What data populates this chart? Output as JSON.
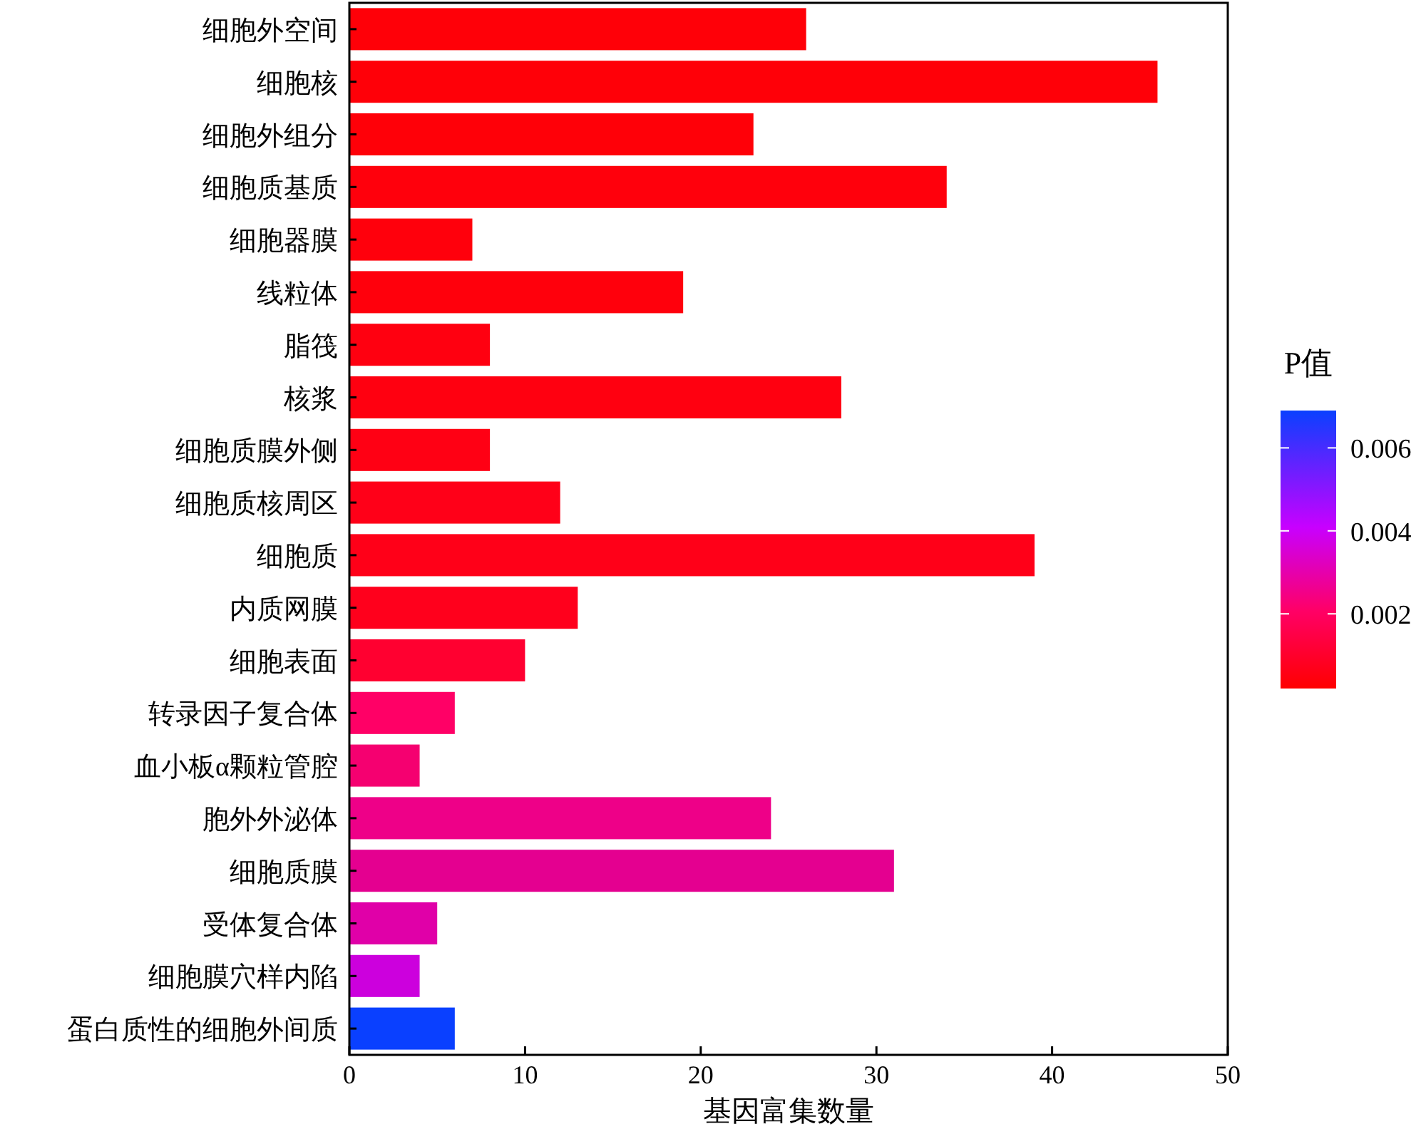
{
  "chart_data": {
    "type": "bar",
    "orientation": "horizontal",
    "xlabel": "基因富集数量",
    "clabel": "P值",
    "categories": [
      "细胞外空间",
      "细胞核",
      "细胞外组分",
      "细胞质基质",
      "细胞器膜",
      "线粒体",
      "脂筏",
      "核浆",
      "细胞质膜外侧",
      "细胞质核周区",
      "细胞质",
      "内质网膜",
      "细胞表面",
      "转录因子复合体",
      "血小板α颗粒管腔",
      "胞外外泌体",
      "细胞质膜",
      "受体复合体",
      "细胞膜穴样内陷",
      "蛋白质性的细胞外间质"
    ],
    "values": [
      26,
      46,
      23,
      34,
      7,
      19,
      8,
      28,
      8,
      12,
      39,
      13,
      10,
      6,
      4,
      24,
      31,
      5,
      4,
      6
    ],
    "colors": [
      "#ff0008",
      "#ff0008",
      "#ff0008",
      "#ff000c",
      "#ff000c",
      "#ff000c",
      "#ff0010",
      "#ff0010",
      "#ff0014",
      "#ff0018",
      "#ff0018",
      "#ff001c",
      "#ff0030",
      "#ff0066",
      "#f50070",
      "#ee0088",
      "#e40090",
      "#e000a8",
      "#cc00dd",
      "#0a40ff"
    ],
    "xlim": [
      0,
      50
    ],
    "xticks": [
      0,
      10,
      20,
      30,
      40,
      50
    ],
    "clim": [
      0.0002,
      0.0069
    ],
    "cticks": [
      0.002,
      0.004,
      0.006
    ]
  }
}
